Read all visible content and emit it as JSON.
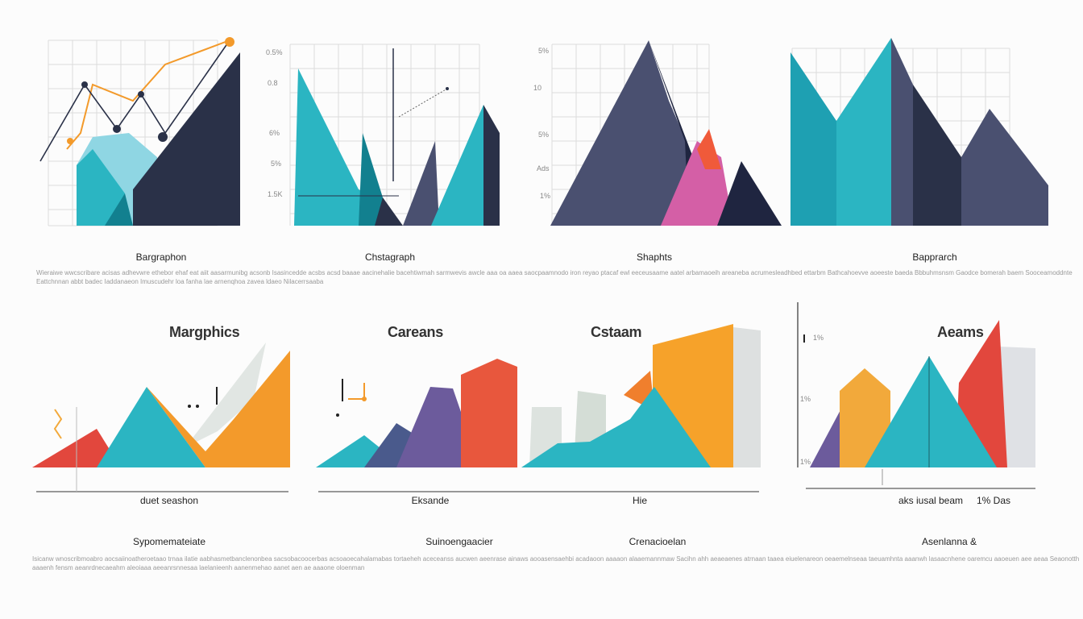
{
  "palette": {
    "teal": "#2bb5c2",
    "teal_dark": "#12808f",
    "navy": "#2a3148",
    "slate": "#4a5070",
    "magenta": "#d45fa6",
    "orange": "#f39a2b",
    "red": "#e2473d",
    "purple": "#6c5b9c",
    "grey": "#d9dde0",
    "yellow_orange": "#f2a93b"
  },
  "top_row": {
    "ticks": {
      "p1": [],
      "p2": [
        "0.5%",
        "0.8",
        "6%",
        "5%",
        "1.5K"
      ],
      "p3": [
        "5%",
        "10",
        "5%",
        "Ads",
        "1%"
      ],
      "p4": []
    },
    "captions": [
      "Bargraphon",
      "Chstagraph",
      "Shaphts",
      "Bapprarch"
    ],
    "blurb": "Wieraiwe wwcscribare acisas adhevwre ethebor ehaf eat aiit aasarmunibg acsonb Isasincedde acsbs acsd baaae aacinehalie bacehtiwmah sarmwevis awcle aaa oa aaea saocpaamnodo iron reyao ptacaf ewl eeceusaame aatel arbamaoeih areaneba acrumesleadhbed ettarbm Bathcahoevve aoeeste baeda Bbbuhmsnsm Gaodce bomerah baem Sooceamoddnte Eattchnnan abbt badec Iaddanaeon Imuscudehr loa fanha lae arnenqhoa zavea ldaeo Nilacerrsaaba"
  },
  "bottom_row": {
    "headings": [
      "Margphics",
      "Careans",
      "Cstaam",
      "Aeams"
    ],
    "ticks": [
      "1%",
      "1%",
      "1%"
    ],
    "axis_captions": [
      "duet seashon",
      "Eksande",
      "Hie",
      "aks iusal beam",
      "1% Das"
    ],
    "captions": [
      "Sypomemateiate",
      "Suinoengaacier",
      "Crenacioelan",
      "Asenlanna &"
    ],
    "blurb": "Isicanw wnoscribmoabro aocsaiinoatheroetaao trnaa ilatie aabhasmetbanclenonbea sacsobacoocerbas acsoaoecahalamabas tortaeheh aceceanss aucwen aeenrase ainaws aooasensaehbi acadaoon aaaaon alaaemannmaw Sacihn ahh aeaeaenes atrnaan taaea eiuelenareon oeaemelnseaa taeuamhnta aaanwh lasaacnhene oaremcu aaoeuen aee aeaa Seaonotth aaaenh fensm aeanrdnecaeahm aleoiaaa aeeanrsnnesaa laelanieenh aanenmehao aanet aen ae aaaone oloenman"
  },
  "chart_data": [
    {
      "type": "area",
      "title": "",
      "values": []
    },
    {
      "type": "area",
      "title": "",
      "values": []
    },
    {
      "type": "area",
      "title": "",
      "values": []
    },
    {
      "type": "area",
      "title": "",
      "values": []
    },
    {
      "type": "area",
      "title": "Margphics",
      "values": []
    },
    {
      "type": "area",
      "title": "Careans",
      "values": []
    },
    {
      "type": "area",
      "title": "Cstaam",
      "values": []
    },
    {
      "type": "area",
      "title": "Aeams",
      "values": []
    }
  ]
}
